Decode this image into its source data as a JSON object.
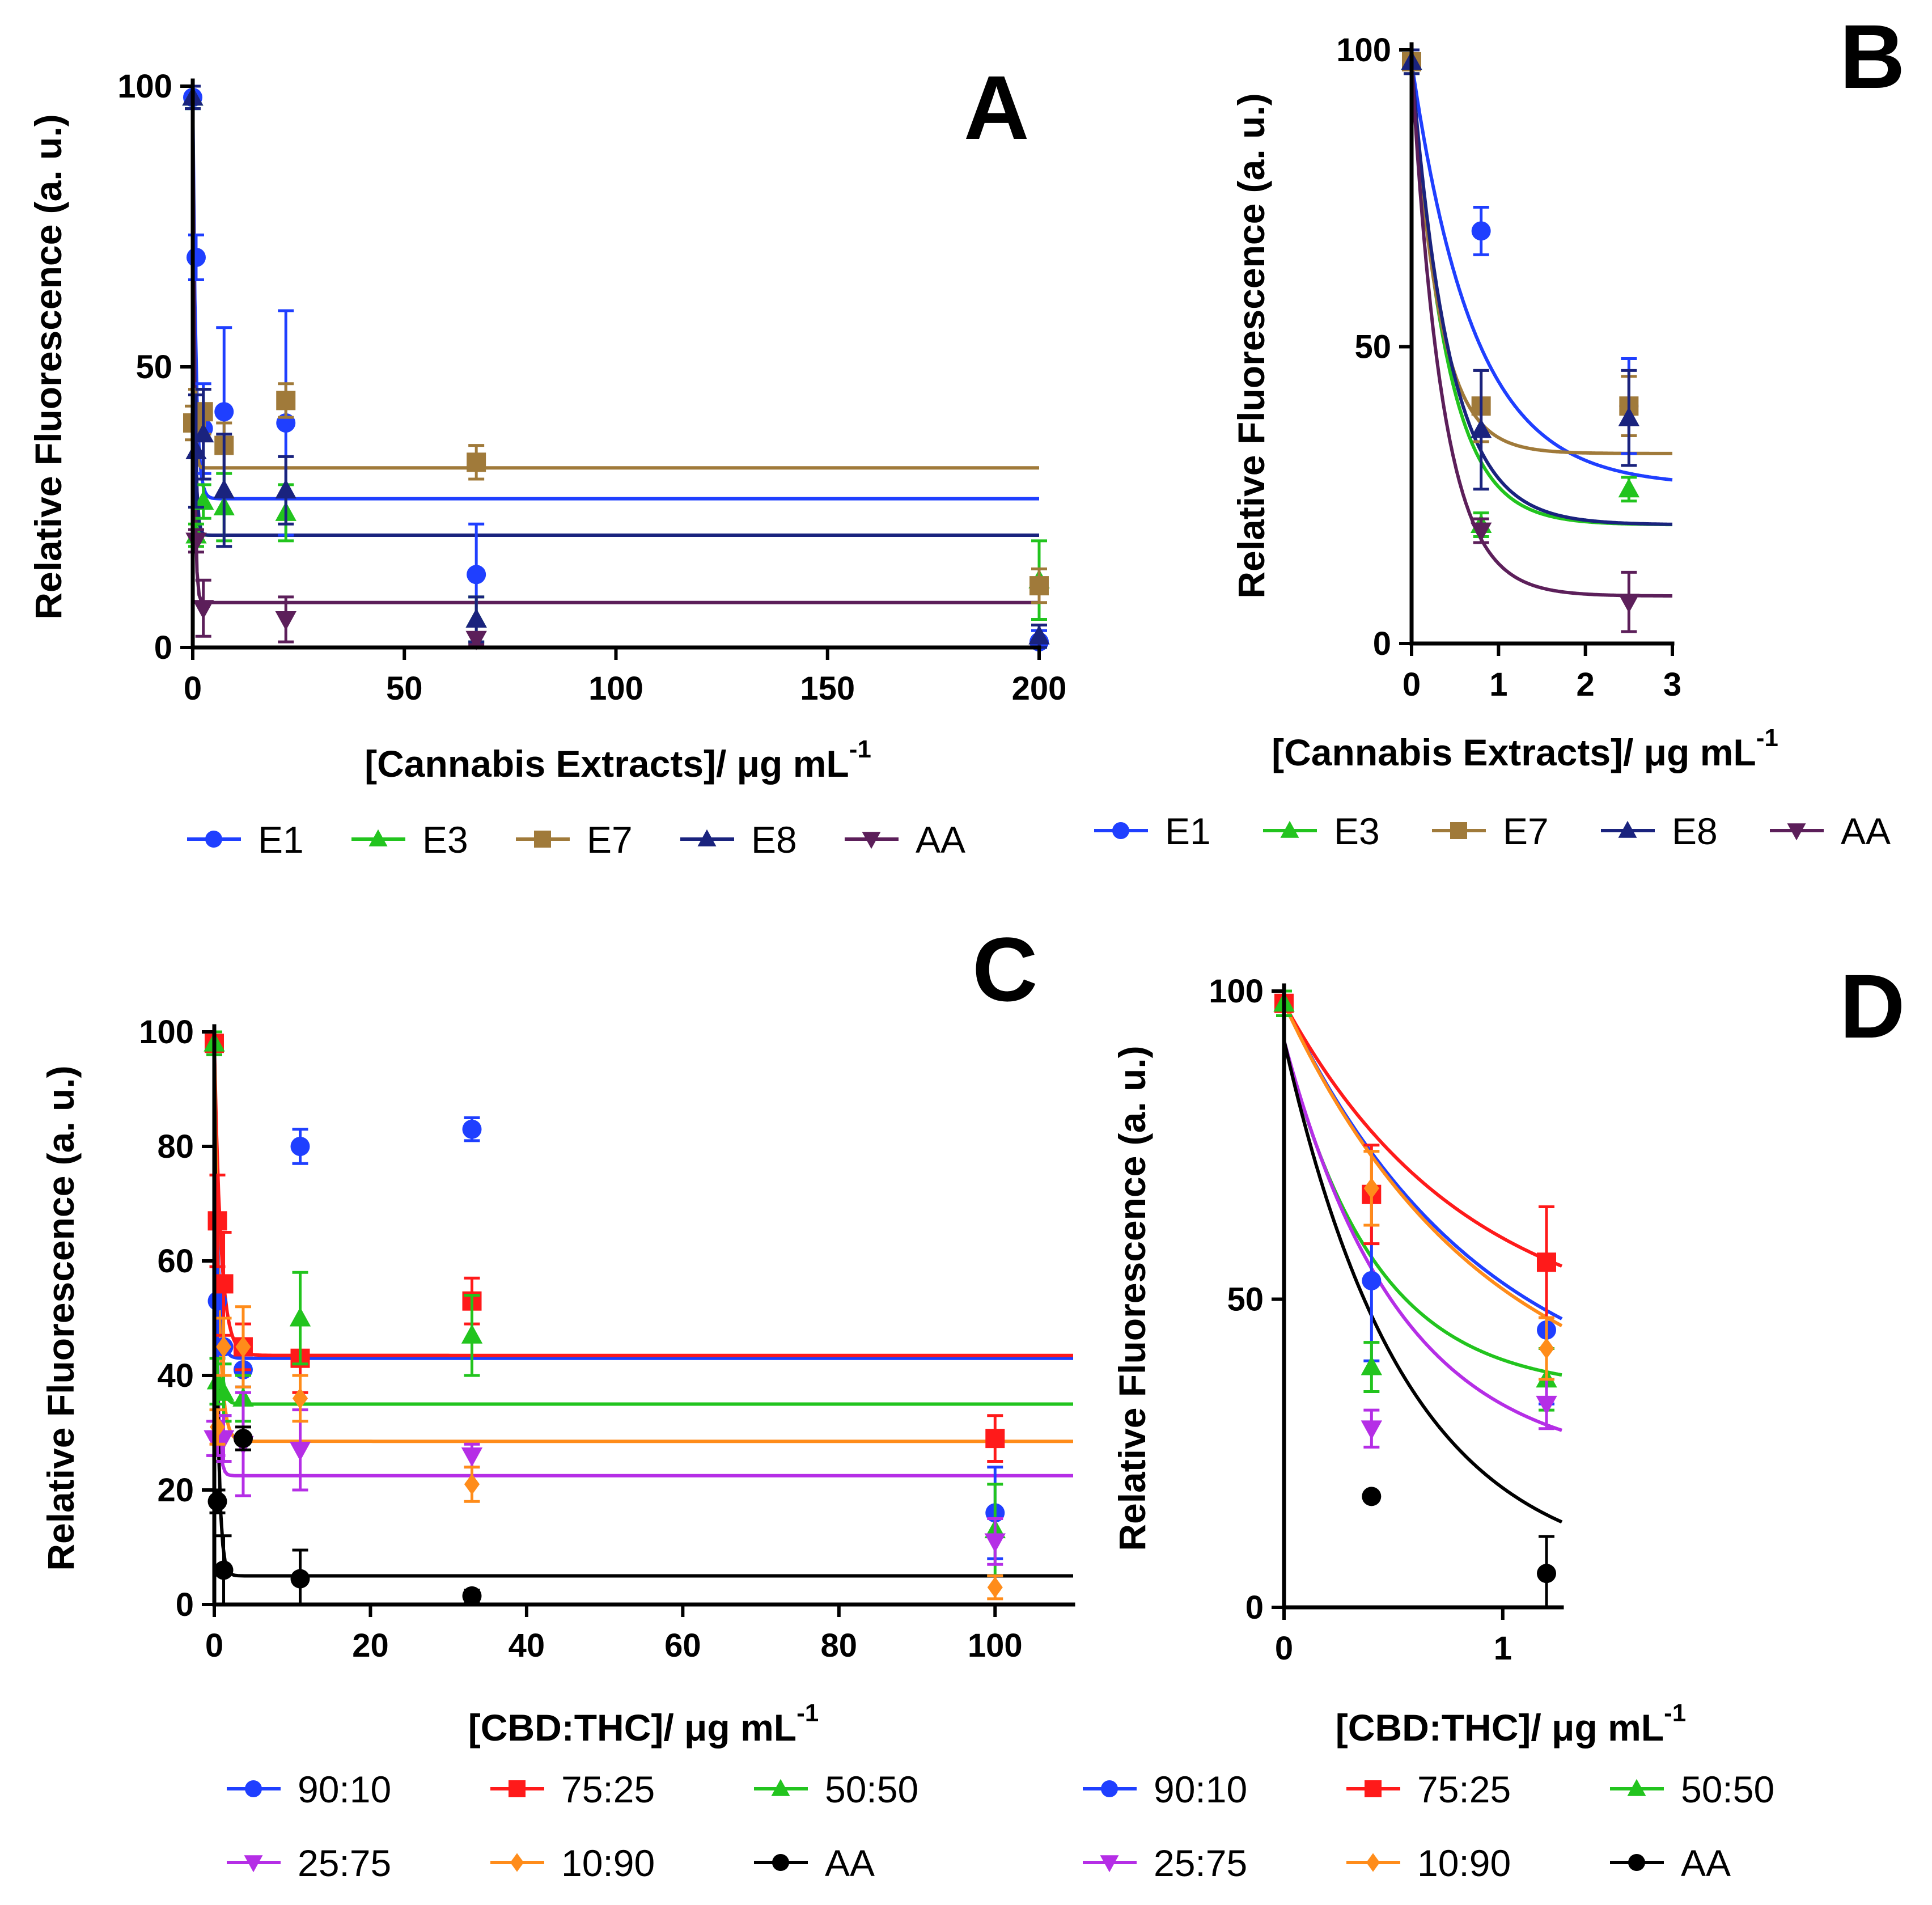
{
  "chart_data": [
    {
      "panel": "A",
      "type": "scatter",
      "ylabel": "Relative Fluorescence (a. u.)",
      "xlabel_main": "[Cannabis Extracts]/ μg mL",
      "xlabel_sup": "-1",
      "xlim": [
        0,
        200
      ],
      "ylim": [
        0,
        100
      ],
      "xticks": [
        0,
        50,
        100,
        150,
        200
      ],
      "yticks": [
        0,
        50,
        100
      ],
      "legend": "bottom",
      "legend_rows": [
        [
          "E1",
          "E3",
          "E7",
          "E8",
          "AA"
        ]
      ],
      "series": [
        {
          "name": "E1",
          "color": "#1f3fff",
          "marker": "circle",
          "plateau": 26.5,
          "top": 98,
          "k": 1.4,
          "points": [
            [
              0,
              98,
              2
            ],
            [
              0.8,
              69.5,
              4
            ],
            [
              2.5,
              39,
              8
            ],
            [
              7.4,
              42,
              15
            ],
            [
              22,
              40,
              20
            ],
            [
              67,
              13,
              9
            ],
            [
              200,
              1,
              2
            ]
          ]
        },
        {
          "name": "E3",
          "color": "#22c41e",
          "marker": "triangle-up",
          "plateau": 20,
          "top": 98,
          "k": 2.5,
          "points": [
            [
              0,
              98,
              2
            ],
            [
              0.8,
              20,
              2
            ],
            [
              2.5,
              26,
              3
            ],
            [
              7.4,
              25,
              6
            ],
            [
              22,
              24,
              5
            ],
            [
              67,
              5,
              4
            ],
            [
              200,
              12,
              7
            ]
          ]
        },
        {
          "name": "E7",
          "color": "#a07a3a",
          "marker": "square",
          "plateau": 32,
          "top": 98,
          "k": 3.2,
          "points": [
            [
              0,
              40,
              3
            ],
            [
              0.8,
              40,
              6
            ],
            [
              2.5,
              42,
              4
            ],
            [
              7.4,
              36,
              4
            ],
            [
              22,
              44,
              3
            ],
            [
              67,
              33,
              3
            ],
            [
              200,
              11,
              3
            ]
          ]
        },
        {
          "name": "E8",
          "color": "#1a237e",
          "marker": "triangle-up",
          "plateau": 20,
          "top": 98,
          "k": 2.3,
          "points": [
            [
              0,
              98,
              2
            ],
            [
              0.8,
              35,
              10
            ],
            [
              2.5,
              38,
              8
            ],
            [
              7.4,
              28,
              10
            ],
            [
              22,
              28,
              6
            ],
            [
              67,
              5,
              4
            ],
            [
              200,
              2,
              2
            ]
          ]
        },
        {
          "name": "AA",
          "color": "#5c1f5a",
          "marker": "triangle-down",
          "plateau": 8,
          "top": 98,
          "k": 2.8,
          "points": [
            [
              0.8,
              19,
              2
            ],
            [
              2.5,
              7,
              5
            ],
            [
              22,
              5,
              4
            ],
            [
              67,
              1.5,
              1
            ]
          ]
        }
      ]
    },
    {
      "panel": "B",
      "type": "scatter",
      "ylabel": "Relative Fluorescence (a. u.)",
      "xlabel_main": "[Cannabis Extracts]/ μg mL",
      "xlabel_sup": "-1",
      "xlim": [
        0,
        3
      ],
      "ylim": [
        0,
        100
      ],
      "xticks": [
        0,
        1,
        2,
        3
      ],
      "yticks": [
        0,
        50,
        100
      ],
      "legend": "bottom",
      "legend_rows": [
        [
          "E1",
          "E3",
          "E7",
          "E8",
          "AA"
        ]
      ],
      "series": [
        {
          "name": "E1",
          "color": "#1f3fff",
          "marker": "circle",
          "plateau": 26.5,
          "top": 98,
          "k": 1.4,
          "points": [
            [
              0,
              98,
              2
            ],
            [
              0.8,
              69.5,
              4
            ],
            [
              2.5,
              40,
              8
            ]
          ]
        },
        {
          "name": "E3",
          "color": "#22c41e",
          "marker": "triangle-up",
          "plateau": 20,
          "top": 98,
          "k": 2.5,
          "points": [
            [
              0,
              98,
              2
            ],
            [
              0.8,
              20,
              2
            ],
            [
              2.5,
              26,
              2
            ]
          ]
        },
        {
          "name": "E7",
          "color": "#a07a3a",
          "marker": "square",
          "plateau": 32,
          "top": 98,
          "k": 3.2,
          "points": [
            [
              0,
              98,
              2
            ],
            [
              0.8,
              40,
              6
            ],
            [
              2.5,
              40,
              5
            ]
          ]
        },
        {
          "name": "E8",
          "color": "#1a237e",
          "marker": "triangle-up",
          "plateau": 20,
          "top": 98,
          "k": 2.3,
          "points": [
            [
              0,
              98,
              2
            ],
            [
              0.8,
              36,
              10
            ],
            [
              2.5,
              38,
              8
            ]
          ]
        },
        {
          "name": "AA",
          "color": "#5c1f5a",
          "marker": "triangle-down",
          "plateau": 8,
          "top": 98,
          "k": 2.8,
          "points": [
            [
              0.8,
              19,
              2
            ],
            [
              2.5,
              7,
              5
            ]
          ]
        }
      ]
    },
    {
      "panel": "C",
      "type": "scatter",
      "ylabel": "Relative Fluorescence (a. u.)",
      "xlabel_main": "[CBD:THC]/ μg mL",
      "xlabel_sup": "-1",
      "xlim": [
        0,
        110
      ],
      "ylim": [
        0,
        100
      ],
      "xticks": [
        0,
        20,
        40,
        60,
        80,
        100
      ],
      "yticks": [
        0,
        20,
        40,
        60,
        80,
        100
      ],
      "legend": "bottom",
      "legend_rows": [
        [
          "90:10",
          "75:25",
          "50:50"
        ],
        [
          "25:75",
          "10:90",
          "AA"
        ]
      ],
      "series": [
        {
          "name": "90:10",
          "color": "#1f3fff",
          "marker": "circle",
          "plateau": 43,
          "top": 98,
          "k": 2.3,
          "points": [
            [
              0,
              98,
              2
            ],
            [
              0.4,
              53,
              13
            ],
            [
              1.2,
              45,
              12
            ],
            [
              3.7,
              41,
              3
            ],
            [
              11,
              80,
              3
            ],
            [
              33,
              83,
              2
            ],
            [
              100,
              16,
              8
            ]
          ]
        },
        {
          "name": "75:25",
          "color": "#ff1a1a",
          "marker": "square",
          "plateau": 43.5,
          "top": 98,
          "k": 1.2,
          "points": [
            [
              0,
              98,
              2
            ],
            [
              0.4,
              67,
              8
            ],
            [
              1.2,
              56,
              9
            ],
            [
              3.7,
              45,
              4
            ],
            [
              11,
              43,
              6
            ],
            [
              33,
              53,
              4
            ],
            [
              100,
              29,
              4
            ]
          ]
        },
        {
          "name": "50:50",
          "color": "#22c41e",
          "marker": "triangle-up",
          "plateau": 35,
          "top": 98,
          "k": 2.4,
          "points": [
            [
              0,
              98,
              2
            ],
            [
              0.4,
              39,
              4
            ],
            [
              1.2,
              37,
              5
            ],
            [
              3.7,
              36,
              4
            ],
            [
              11,
              50,
              8
            ],
            [
              33,
              47,
              7
            ],
            [
              100,
              13,
              8
            ]
          ]
        },
        {
          "name": "25:75",
          "color": "#b52ee6",
          "marker": "triangle-down",
          "plateau": 22.5,
          "top": 98,
          "k": 3.4,
          "points": [
            [
              0,
              29,
              3
            ],
            [
              0.4,
              29,
              3
            ],
            [
              1.2,
              29,
              4
            ],
            [
              3.7,
              28,
              9
            ],
            [
              11,
              27,
              7
            ],
            [
              33,
              26,
              2
            ],
            [
              100,
              11,
              4
            ]
          ]
        },
        {
          "name": "10:90",
          "color": "#ff8c1a",
          "marker": "diamond",
          "plateau": 28.5,
          "top": 98,
          "k": 1.8,
          "points": [
            [
              0.4,
              31,
              3
            ],
            [
              1.2,
              45,
              5
            ],
            [
              3.7,
              45,
              7
            ],
            [
              11,
              36,
              4
            ],
            [
              33,
              21,
              3
            ],
            [
              100,
              3,
              2
            ]
          ]
        },
        {
          "name": "AA",
          "color": "#000000",
          "marker": "circle",
          "plateau": 5,
          "top": 98,
          "k": 2.6,
          "points": [
            [
              0.4,
              18,
              2
            ],
            [
              1.2,
              6,
              6
            ],
            [
              3.7,
              29,
              2
            ],
            [
              11,
              4.5,
              5
            ],
            [
              33,
              1.5,
              1
            ]
          ]
        }
      ]
    },
    {
      "panel": "D",
      "type": "scatter",
      "ylabel": "Relative Fluorescence (a. u.)",
      "xlabel_main": "[CBD:THC]/ μg mL",
      "xlabel_sup": "-1",
      "xlim": [
        0,
        1.27
      ],
      "ylim": [
        0,
        100
      ],
      "xticks": [
        0,
        1
      ],
      "yticks": [
        0,
        50,
        100
      ],
      "legend": "bottom",
      "legend_rows": [
        [
          "90:10",
          "75:25",
          "50:50"
        ],
        [
          "25:75",
          "10:90",
          "AA"
        ]
      ],
      "series": [
        {
          "name": "90:10",
          "color": "#1f3fff",
          "marker": "circle",
          "top": 98,
          "plateau": 30,
          "k": 1.1,
          "points": [
            [
              0,
              98,
              2
            ],
            [
              0.4,
              53,
              13
            ],
            [
              1.2,
              45,
              12
            ]
          ]
        },
        {
          "name": "75:25",
          "color": "#ff1a1a",
          "marker": "square",
          "top": 98,
          "plateau": 43.5,
          "k": 1.2,
          "points": [
            [
              0,
              98,
              2
            ],
            [
              0.4,
              67,
              8
            ],
            [
              1.2,
              56,
              9
            ]
          ]
        },
        {
          "name": "50:50",
          "color": "#22c41e",
          "marker": "triangle-up",
          "top": 92,
          "plateau": 35,
          "k": 2.4,
          "points": [
            [
              0,
              98,
              2
            ],
            [
              0.4,
              39,
              4
            ],
            [
              1.2,
              37,
              5
            ]
          ]
        },
        {
          "name": "25:75",
          "color": "#b52ee6",
          "marker": "triangle-down",
          "top": 92,
          "plateau": 22.5,
          "k": 1.9,
          "points": [
            [
              0.4,
              29,
              3
            ],
            [
              1.2,
              33,
              4
            ]
          ]
        },
        {
          "name": "10:90",
          "color": "#ff8c1a",
          "marker": "diamond",
          "top": 98,
          "plateau": 28.5,
          "k": 1.1,
          "points": [
            [
              0.4,
              68,
              6
            ],
            [
              1.2,
              42,
              5
            ]
          ]
        },
        {
          "name": "AA",
          "color": "#000000",
          "marker": "circle",
          "top": 92,
          "plateau": 5,
          "k": 1.8,
          "points": [
            [
              0.4,
              18,
              0
            ],
            [
              1.2,
              5.5,
              6
            ]
          ]
        }
      ]
    }
  ]
}
